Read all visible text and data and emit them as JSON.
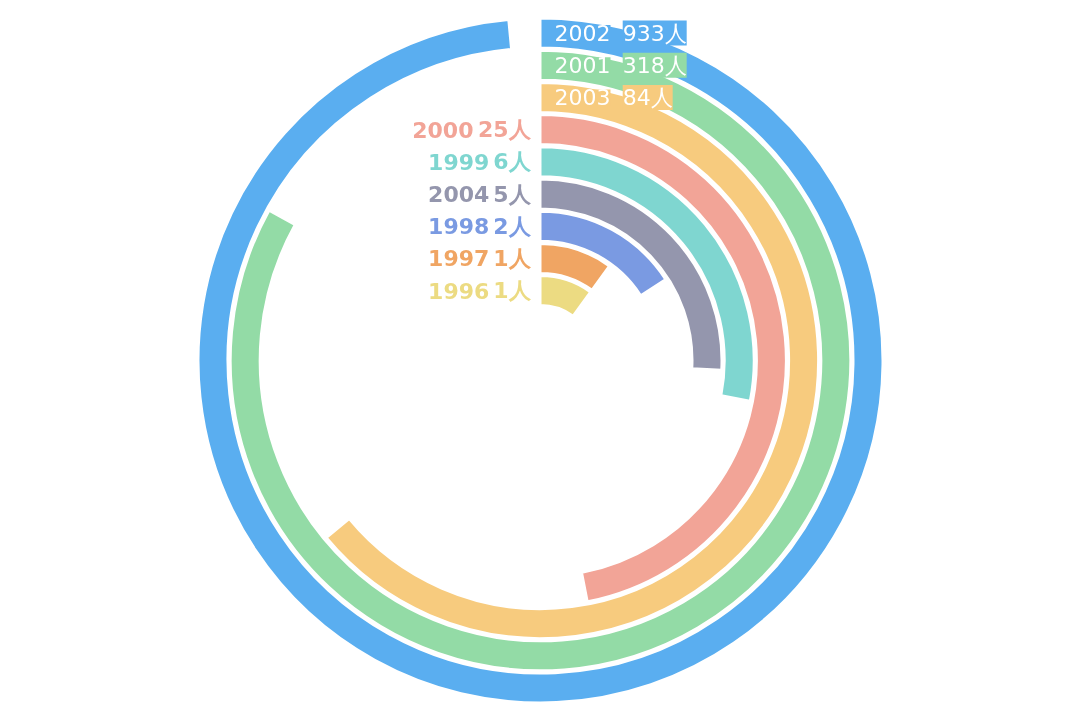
{
  "chart_data": {
    "type": "other",
    "categories": [
      "2002",
      "2001",
      "2003",
      "2000",
      "1999",
      "2004",
      "1998",
      "1997",
      "1996"
    ],
    "values": [
      933,
      318,
      84,
      25,
      6,
      5,
      2,
      1,
      1
    ],
    "value_labels": [
      "933人",
      "318人",
      "84人",
      "25人",
      "6人",
      "5人",
      "2人",
      "1人",
      "1人"
    ],
    "colors": [
      "#5aaef0",
      "#93dba6",
      "#f7cb7e",
      "#f2a497",
      "#7fd6d0",
      "#9496ad",
      "#7a9ae2",
      "#f0a563",
      "#ecdb82"
    ]
  }
}
